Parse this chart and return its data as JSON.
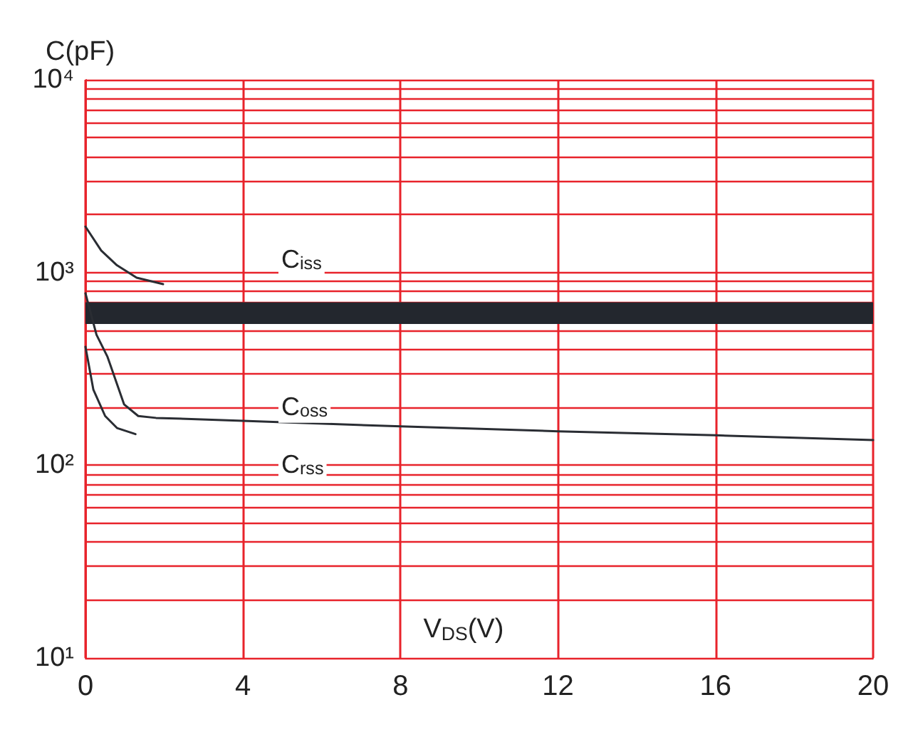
{
  "chart_data": {
    "type": "line",
    "xlabel": "V$_{DS}$(V)",
    "ylabel": "C(pF)",
    "log": "y",
    "grid": true,
    "marker": "none",
    "line_style": "solid",
    "xlim": [
      0,
      20
    ],
    "xticks": [
      0,
      4,
      8,
      12,
      16,
      20
    ],
    "ylim": [
      10,
      10000
    ],
    "yticks": [
      {
        "value": 10,
        "label": "10¹"
      },
      {
        "value": 20,
        "label": null
      },
      {
        "value": 30,
        "label": null
      },
      {
        "value": 40,
        "label": null
      },
      {
        "value": 50,
        "label": null
      },
      {
        "value": 60,
        "label": null
      },
      {
        "value": 70,
        "label": null
      },
      {
        "value": 80,
        "label": null
      },
      {
        "value": 90,
        "label": null
      },
      {
        "value": 100,
        "label": "10²"
      },
      {
        "value": 200,
        "label": null
      },
      {
        "value": 300,
        "label": null
      },
      {
        "value": 400,
        "label": null
      },
      {
        "value": 500,
        "label": null
      },
      {
        "value": 700,
        "label": null
      },
      {
        "value": 800,
        "label": null
      },
      {
        "value": 900,
        "label": null
      },
      {
        "value": 1000,
        "label": "10³"
      },
      {
        "value": 2000,
        "label": null
      },
      {
        "value": 3000,
        "label": null
      },
      {
        "value": 4000,
        "label": null
      },
      {
        "value": 5000,
        "label": null
      },
      {
        "value": 6000,
        "label": null
      },
      {
        "value": 7000,
        "label": null
      },
      {
        "value": 8000,
        "label": null
      },
      {
        "value": 9000,
        "label": null
      },
      {
        "value": 10000,
        "label": "10⁴"
      }
    ],
    "series": [
      {
        "color": "#2a2d33",
        "x": [
          0,
          0.4,
          0.8,
          1.3,
          1.97
        ],
        "values": [
          1730,
          1300,
          1090,
          940,
          870
        ]
      },
      {
        "color": "#2a2d33",
        "x": [
          0,
          0.28,
          0.56,
          0.98,
          1.34,
          1.79,
          4,
          8,
          12,
          16,
          20
        ],
        "values": [
          780,
          475,
          365,
          207,
          180,
          176,
          170,
          159,
          150,
          143,
          135
        ]
      },
      {
        "color": "#2a2d33",
        "x": [
          0,
          0.2,
          0.5,
          0.8,
          1.27
        ],
        "values": [
          412,
          247,
          180,
          156,
          145
        ]
      }
    ],
    "bands": [
      {
        "axis": "y",
        "from": 540,
        "to": 700,
        "color": "#23272e"
      }
    ],
    "annotations": [
      "C$_{iss}$",
      "C$_{oss}$",
      "C$_{rss}$"
    ]
  }
}
